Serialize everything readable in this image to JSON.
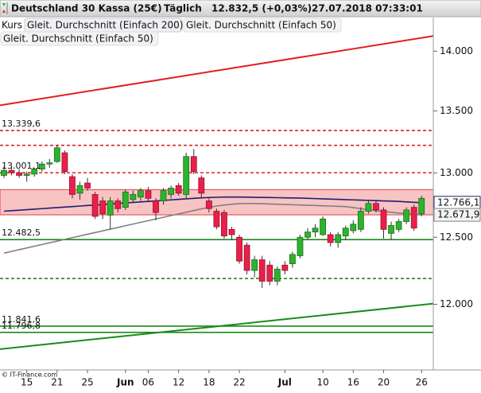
{
  "chart_data": {
    "type": "candlestick",
    "title": "Deutschland 30 Kassa (25€)",
    "interval": "Täglich",
    "quote": "12.832,5 (+0,03%)",
    "timestamp": "27.07.2018 07:33:01",
    "source": "© IT-Finance.com",
    "categories": [
      null,
      null,
      null,
      "15",
      null,
      null,
      null,
      "21",
      null,
      null,
      null,
      "25",
      null,
      null,
      null,
      null,
      "Jun",
      null,
      null,
      "06",
      null,
      null,
      null,
      "12",
      null,
      null,
      null,
      "18",
      null,
      null,
      null,
      "22",
      null,
      null,
      null,
      null,
      null,
      "Jul",
      null,
      null,
      null,
      null,
      "10",
      null,
      null,
      null,
      "16",
      null,
      null,
      null,
      "20",
      null,
      null,
      null,
      null,
      "26"
    ],
    "candles": {
      "name": "Kurs",
      "up_color": "#2db32d",
      "down_color": "#e8204a",
      "open": [
        12980,
        13020,
        13000,
        12980,
        12990,
        13030,
        13070,
        13090,
        13160,
        12970,
        12840,
        12920,
        12830,
        12780,
        12670,
        12780,
        12730,
        12790,
        12810,
        12860,
        12780,
        12780,
        12830,
        12900,
        12830,
        13130,
        12960,
        12780,
        12700,
        12690,
        12560,
        12500,
        12440,
        12250,
        12330,
        12290,
        12170,
        12290,
        12300,
        12360,
        12500,
        12540,
        12520,
        12520,
        12460,
        12510,
        12550,
        12560,
        12700,
        12760,
        12710,
        12530,
        12560,
        12620,
        12730,
        12680
      ],
      "high": [
        13050,
        13040,
        13030,
        13010,
        13040,
        13090,
        13110,
        13220,
        13180,
        12990,
        12930,
        12960,
        12850,
        12810,
        12810,
        12800,
        12870,
        12860,
        12880,
        12890,
        12800,
        12880,
        12900,
        12920,
        13160,
        13190,
        12980,
        12800,
        12720,
        12710,
        12580,
        12520,
        12460,
        12360,
        12360,
        12320,
        12280,
        12320,
        12390,
        12520,
        12570,
        12600,
        12660,
        12540,
        12540,
        12590,
        12630,
        12730,
        12790,
        12780,
        12730,
        12620,
        12640,
        12730,
        12750,
        12820
      ],
      "low": [
        12960,
        12980,
        12960,
        12930,
        12970,
        13010,
        13040,
        13080,
        12990,
        12800,
        12790,
        12860,
        12640,
        12640,
        12560,
        12690,
        12710,
        12770,
        12780,
        12780,
        12630,
        12750,
        12800,
        12820,
        12800,
        12990,
        12800,
        12690,
        12560,
        12490,
        12480,
        12300,
        12220,
        12200,
        12120,
        12140,
        12140,
        12220,
        12270,
        12340,
        12480,
        12500,
        12510,
        12430,
        12420,
        12480,
        12530,
        12540,
        12680,
        12690,
        12490,
        12480,
        12540,
        12600,
        12550,
        12660
      ],
      "close": [
        13020,
        13000,
        12980,
        12990,
        13030,
        13070,
        13080,
        13200,
        13010,
        12830,
        12900,
        12880,
        12660,
        12680,
        12780,
        12720,
        12850,
        12830,
        12860,
        12800,
        12690,
        12860,
        12880,
        12840,
        13130,
        13010,
        12840,
        12720,
        12580,
        12510,
        12520,
        12320,
        12250,
        12330,
        12170,
        12170,
        12260,
        12250,
        12370,
        12500,
        12540,
        12570,
        12640,
        12460,
        12520,
        12570,
        12600,
        12700,
        12760,
        12710,
        12560,
        12590,
        12620,
        12710,
        12570,
        12800
      ]
    },
    "series": [
      {
        "name": "Gleit. Durchschnitt (Einfach 200)",
        "color": "#1f1f70",
        "values": [
          12700,
          12704,
          12708,
          12712,
          12716,
          12720,
          12724,
          12728,
          12732,
          12736,
          12740,
          12744,
          12748,
          12752,
          12756,
          12760,
          12764,
          12768,
          12772,
          12776,
          12780,
          12784,
          12788,
          12792,
          12796,
          12800,
          12804,
          12806,
          12808,
          12810,
          12810,
          12810,
          12809,
          12808,
          12807,
          12806,
          12805,
          12804,
          12803,
          12802,
          12800,
          12798,
          12796,
          12794,
          12792,
          12790,
          12788,
          12786,
          12784,
          12782,
          12780,
          12778,
          12776,
          12772,
          12769,
          12766.1
        ],
        "last_value": 12766.1,
        "last_label": "12.766,1"
      },
      {
        "name": "Gleit. Durchschnitt (Einfach 50)",
        "color": "#808080",
        "values": [
          12380,
          12393,
          12406,
          12419,
          12432,
          12445,
          12458,
          12471,
          12484,
          12497,
          12510,
          12523,
          12536,
          12549,
          12562,
          12575,
          12588,
          12601,
          12614,
          12627,
          12640,
          12653,
          12666,
          12679,
          12692,
          12705,
          12718,
          12730,
          12740,
          12748,
          12754,
          12758,
          12760,
          12760,
          12758,
          12756,
          12754,
          12752,
          12750,
          12748,
          12746,
          12744,
          12742,
          12740,
          12738,
          12736,
          12728,
          12720,
          12712,
          12704,
          12698,
          12692,
          12686,
          12681,
          12676,
          12671.9
        ],
        "last_value": 12671.9,
        "last_label": "12.671,9"
      }
    ],
    "levels": [
      {
        "value": 13339.6,
        "label": "13.339,6",
        "color": "#e02020",
        "style": "dashed"
      },
      {
        "value": 13220,
        "color": "#e02020",
        "style": "dashed"
      },
      {
        "value": 13001.1,
        "label": "13.001,1",
        "color": "#e02020",
        "style": "dashed"
      },
      {
        "value": 12482.5,
        "label": "12.482,5",
        "color": "#1a8a1a",
        "style": "solid"
      },
      {
        "value": 12190,
        "color": "#1a8a1a",
        "style": "dashed"
      },
      {
        "value": 11841.6,
        "label": "11.841,6",
        "color": "#1a8a1a",
        "style": "solid"
      },
      {
        "value": 11796.8,
        "label": "11.796,8",
        "color": "#1a8a1a",
        "style": "solid"
      }
    ],
    "zone": {
      "from": 12672,
      "to": 12868,
      "color": "#f7b8b8",
      "border": "#e04040"
    },
    "trendlines": [
      {
        "start": 13546,
        "end": 14130,
        "color": "#e02020"
      },
      {
        "start": 11677,
        "end": 12005,
        "color": "#1a8a1a"
      }
    ],
    "log_scale": true,
    "ylim": [
      11530,
      14290
    ],
    "yticks": [
      {
        "value": 14000,
        "label": "14.000"
      },
      {
        "value": 13500,
        "label": "13.500"
      },
      {
        "value": 13000,
        "label": "13.000"
      },
      {
        "value": 12500,
        "label": "12.500"
      },
      {
        "value": 12000,
        "label": "12.000"
      }
    ]
  }
}
